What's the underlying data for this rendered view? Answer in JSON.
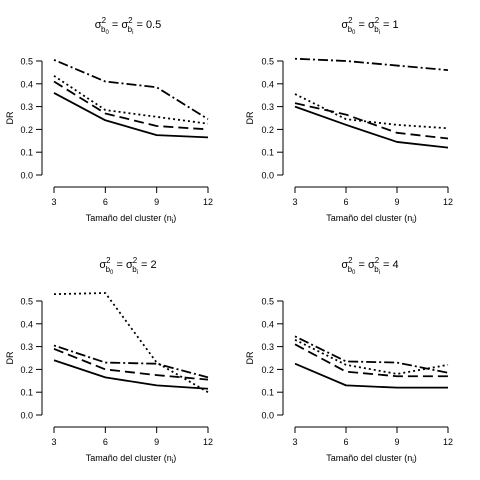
{
  "chart_data": [
    {
      "type": "line",
      "title_parts": {
        "base": "σ",
        "sup": "2",
        "sub1": "b",
        "sub1_idx": "0",
        "eq": "=",
        "sub2": "b",
        "sub2_idx": "i",
        "value": "0.5"
      },
      "xlabel": "Tamaño del cluster",
      "xlabel_sub": "i",
      "ylabel": "DR",
      "x": [
        3,
        6,
        9,
        12
      ],
      "xticks": [
        "3",
        "6",
        "9",
        "12"
      ],
      "yticks": [
        "0.0",
        "0.1",
        "0.2",
        "0.3",
        "0.4",
        "0.5"
      ],
      "xlim": [
        3,
        12
      ],
      "ylim": [
        0,
        0.5
      ],
      "series": [
        {
          "style": "solid",
          "values": [
            0.36,
            0.24,
            0.175,
            0.165
          ]
        },
        {
          "style": "dashed",
          "values": [
            0.41,
            0.27,
            0.215,
            0.2
          ]
        },
        {
          "style": "dotted",
          "values": [
            0.435,
            0.285,
            0.255,
            0.225
          ]
        },
        {
          "style": "dotdash",
          "values": [
            0.505,
            0.41,
            0.385,
            0.245
          ]
        }
      ]
    },
    {
      "type": "line",
      "title_parts": {
        "base": "σ",
        "sup": "2",
        "sub1": "b",
        "sub1_idx": "0",
        "eq": "=",
        "sub2": "b",
        "sub2_idx": "i",
        "value": "1"
      },
      "xlabel": "Tamaño del cluster",
      "xlabel_sub": "i",
      "ylabel": "DR",
      "x": [
        3,
        6,
        9,
        12
      ],
      "xticks": [
        "3",
        "6",
        "9",
        "12"
      ],
      "yticks": [
        "0.0",
        "0.1",
        "0.2",
        "0.3",
        "0.4",
        "0.5"
      ],
      "xlim": [
        3,
        12
      ],
      "ylim": [
        0,
        0.5
      ],
      "series": [
        {
          "style": "solid",
          "values": [
            0.3,
            0.22,
            0.145,
            0.12
          ]
        },
        {
          "style": "dashed",
          "values": [
            0.315,
            0.265,
            0.185,
            0.16
          ]
        },
        {
          "style": "dotted",
          "values": [
            0.355,
            0.245,
            0.22,
            0.205
          ]
        },
        {
          "style": "dotdash",
          "values": [
            0.51,
            0.5,
            0.48,
            0.46
          ]
        }
      ]
    },
    {
      "type": "line",
      "title_parts": {
        "base": "σ",
        "sup": "2",
        "sub1": "b",
        "sub1_idx": "0",
        "eq": "=",
        "sub2": "b",
        "sub2_idx": "i",
        "value": "2"
      },
      "xlabel": "Tamaño del cluster",
      "xlabel_sub": "i",
      "ylabel": "DR",
      "x": [
        3,
        6,
        9,
        12
      ],
      "xticks": [
        "3",
        "6",
        "9",
        "12"
      ],
      "yticks": [
        "0.0",
        "0.1",
        "0.2",
        "0.3",
        "0.4",
        "0.5"
      ],
      "xlim": [
        3,
        12
      ],
      "ylim": [
        0,
        0.5
      ],
      "series": [
        {
          "style": "solid",
          "values": [
            0.24,
            0.165,
            0.13,
            0.115
          ]
        },
        {
          "style": "dashed",
          "values": [
            0.29,
            0.2,
            0.175,
            0.155
          ]
        },
        {
          "style": "dotted",
          "values": [
            0.53,
            0.535,
            0.23,
            0.1
          ]
        },
        {
          "style": "dotdash",
          "values": [
            0.305,
            0.23,
            0.225,
            0.165
          ]
        }
      ]
    },
    {
      "type": "line",
      "title_parts": {
        "base": "σ",
        "sup": "2",
        "sub1": "b",
        "sub1_idx": "0",
        "eq": "=",
        "sub2": "b",
        "sub2_idx": "i",
        "value": "4"
      },
      "xlabel": "Tamaño del cluster",
      "xlabel_sub": "i",
      "ylabel": "DR",
      "x": [
        3,
        6,
        9,
        12
      ],
      "xticks": [
        "3",
        "6",
        "9",
        "12"
      ],
      "yticks": [
        "0.0",
        "0.1",
        "0.2",
        "0.3",
        "0.4",
        "0.5"
      ],
      "xlim": [
        3,
        12
      ],
      "ylim": [
        0,
        0.5
      ],
      "series": [
        {
          "style": "solid",
          "values": [
            0.225,
            0.13,
            0.12,
            0.12
          ]
        },
        {
          "style": "dashed",
          "values": [
            0.31,
            0.19,
            0.17,
            0.17
          ]
        },
        {
          "style": "dotted",
          "values": [
            0.33,
            0.22,
            0.18,
            0.22
          ]
        },
        {
          "style": "dotdash",
          "values": [
            0.345,
            0.235,
            0.23,
            0.185
          ]
        }
      ]
    }
  ]
}
